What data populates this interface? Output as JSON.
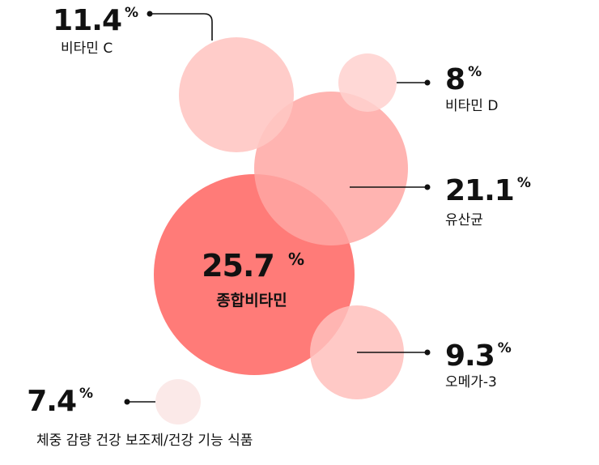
{
  "chart_data": {
    "type": "bubble",
    "unit": "%",
    "series": [
      {
        "label": "종합비타민",
        "value": 25.7,
        "value_text": "25.7",
        "color": "#ff7b78",
        "opacity": 1.0
      },
      {
        "label": "유산균",
        "value": 21.1,
        "value_text": "21.1",
        "color": "#ffa7a3",
        "opacity": 0.85
      },
      {
        "label": "비타민 C",
        "value": 11.4,
        "value_text": "11.4",
        "color": "#ffc7c3",
        "opacity": 0.9
      },
      {
        "label": "오메가-3",
        "value": 9.3,
        "value_text": "9.3",
        "color": "#ffc0bc",
        "opacity": 0.85
      },
      {
        "label": "비타민 D",
        "value": 8,
        "value_text": "8",
        "color": "#ffd1cf",
        "opacity": 0.85
      },
      {
        "label": "체중 감량 건강 보조제/건강 기능 식품",
        "value": 7.4,
        "value_text": "7.4",
        "color": "#fbe9e8",
        "opacity": 1.0
      }
    ]
  }
}
